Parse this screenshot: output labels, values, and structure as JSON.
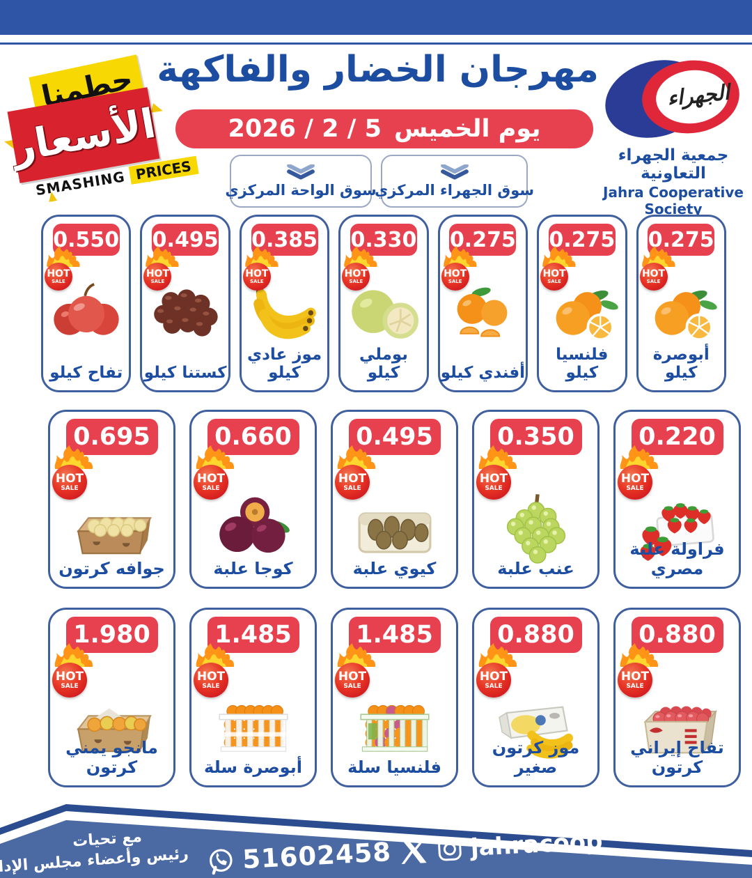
{
  "promo_badge": {
    "line1_ar": "حطمنا",
    "line2_ar": "الأسعار",
    "en_word1": "SMASHING",
    "en_word2": "PRICES"
  },
  "header": {
    "title": "مهرجان الخضار والفاكهة",
    "date_day": "يوم الخميس",
    "date_numbers": "2026 / 2 / 5"
  },
  "logo": {
    "calligraphy": "الجهراء",
    "name_ar": "جمعية الجهراء التعاونية",
    "name_en": "Jahra Cooperative Society"
  },
  "markets": [
    {
      "label": "سوق الواحة المركزي"
    },
    {
      "label": "سوق الجهراء المركزي"
    }
  ],
  "hot_sale": {
    "line1": "HOT",
    "line2": "SALE"
  },
  "rows": [
    [
      {
        "price": "0.550",
        "name": "تفاح كيلو",
        "icon": "apples"
      },
      {
        "price": "0.495",
        "name": "كستنا كيلو",
        "icon": "chestnuts"
      },
      {
        "price": "0.385",
        "name": "موز عادي كيلو",
        "icon": "bananas"
      },
      {
        "price": "0.330",
        "name": "بوملي كيلو",
        "icon": "pomelo"
      },
      {
        "price": "0.275",
        "name": "أفندي كيلو",
        "icon": "mandarin"
      },
      {
        "price": "0.275",
        "name": "فلنسيا كيلو",
        "icon": "oranges"
      },
      {
        "price": "0.275",
        "name": "أبوصرة كيلو",
        "icon": "oranges"
      }
    ],
    [
      {
        "price": "0.695",
        "name": "جوافه كرتون",
        "icon": "guava-carton"
      },
      {
        "price": "0.660",
        "name": "كوجا علبة",
        "icon": "plums"
      },
      {
        "price": "0.495",
        "name": "كيوي علبة",
        "icon": "kiwi-box"
      },
      {
        "price": "0.350",
        "name": "عنب علبة",
        "icon": "grapes"
      },
      {
        "price": "0.220",
        "name": "فراولة علبة مصري",
        "icon": "strawberry-box"
      }
    ],
    [
      {
        "price": "1.980",
        "name": "مانجو يمني كرتون",
        "icon": "mango-carton"
      },
      {
        "price": "1.485",
        "name": "أبوصرة سلة",
        "icon": "orange-basket"
      },
      {
        "price": "1.485",
        "name": "فلنسيا سلة",
        "icon": "orange-crate"
      },
      {
        "price": "0.880",
        "name": "موز كرتون صغير",
        "icon": "banana-carton"
      },
      {
        "price": "0.880",
        "name": "تفاح إيراني كرتون",
        "icon": "apple-carton"
      }
    ]
  ],
  "footer": {
    "greeting1": "مع تحيات",
    "greeting2": "رئيس وأعضاء مجلس الإدارة",
    "phone": "51602458",
    "instagram_handle": "jahracoop"
  },
  "colors": {
    "primary_blue": "#2f55a7",
    "text_blue": "#1c4da0",
    "pill_red": "#e7404f",
    "badge_red": "#d8232f",
    "badge_yellow": "#f8d803",
    "footer_band": "#4b69a3"
  }
}
